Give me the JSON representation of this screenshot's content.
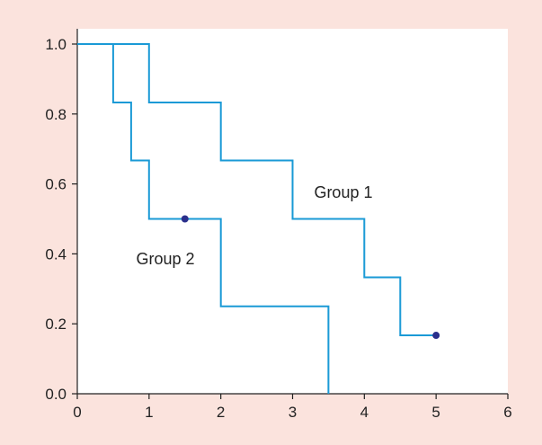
{
  "chart_data": {
    "type": "line",
    "step": true,
    "xlim": [
      0,
      6
    ],
    "ylim": [
      0,
      1.0
    ],
    "x_ticks": [
      0,
      1,
      2,
      3,
      4,
      5,
      6
    ],
    "x_tick_labels": [
      "0",
      "1",
      "2",
      "3",
      "4",
      "5",
      "6"
    ],
    "y_ticks": [
      0,
      0.2,
      0.4,
      0.6,
      0.8,
      1.0
    ],
    "y_tick_labels": [
      "0.0",
      "0.2",
      "0.4",
      "0.6",
      "0.8",
      "1.0"
    ],
    "grid": false,
    "line_color": "#1a9ad6",
    "marker_color": "#2b2f8c",
    "plot_background": "#ffffff",
    "page_background": "#fbe3dd",
    "series": [
      {
        "name": "Group 1",
        "points": [
          [
            0,
            1.0
          ],
          [
            1,
            1.0
          ],
          [
            1,
            0.833
          ],
          [
            2,
            0.833
          ],
          [
            2,
            0.667
          ],
          [
            3,
            0.667
          ],
          [
            3,
            0.5
          ],
          [
            4,
            0.5
          ],
          [
            4,
            0.333
          ],
          [
            4.5,
            0.333
          ],
          [
            4.5,
            0.167
          ],
          [
            5,
            0.167
          ]
        ],
        "censored": [
          [
            5,
            0.167
          ]
        ],
        "label_anchor": [
          3.3,
          0.56
        ]
      },
      {
        "name": "Group 2",
        "points": [
          [
            0,
            1.0
          ],
          [
            0.5,
            1.0
          ],
          [
            0.5,
            0.833
          ],
          [
            0.75,
            0.833
          ],
          [
            0.75,
            0.667
          ],
          [
            1,
            0.667
          ],
          [
            1,
            0.5
          ],
          [
            2,
            0.5
          ],
          [
            2,
            0.25
          ],
          [
            3.5,
            0.25
          ],
          [
            3.5,
            0
          ]
        ],
        "censored": [
          [
            1.5,
            0.5
          ]
        ],
        "label_anchor": [
          0.82,
          0.37
        ]
      }
    ]
  }
}
